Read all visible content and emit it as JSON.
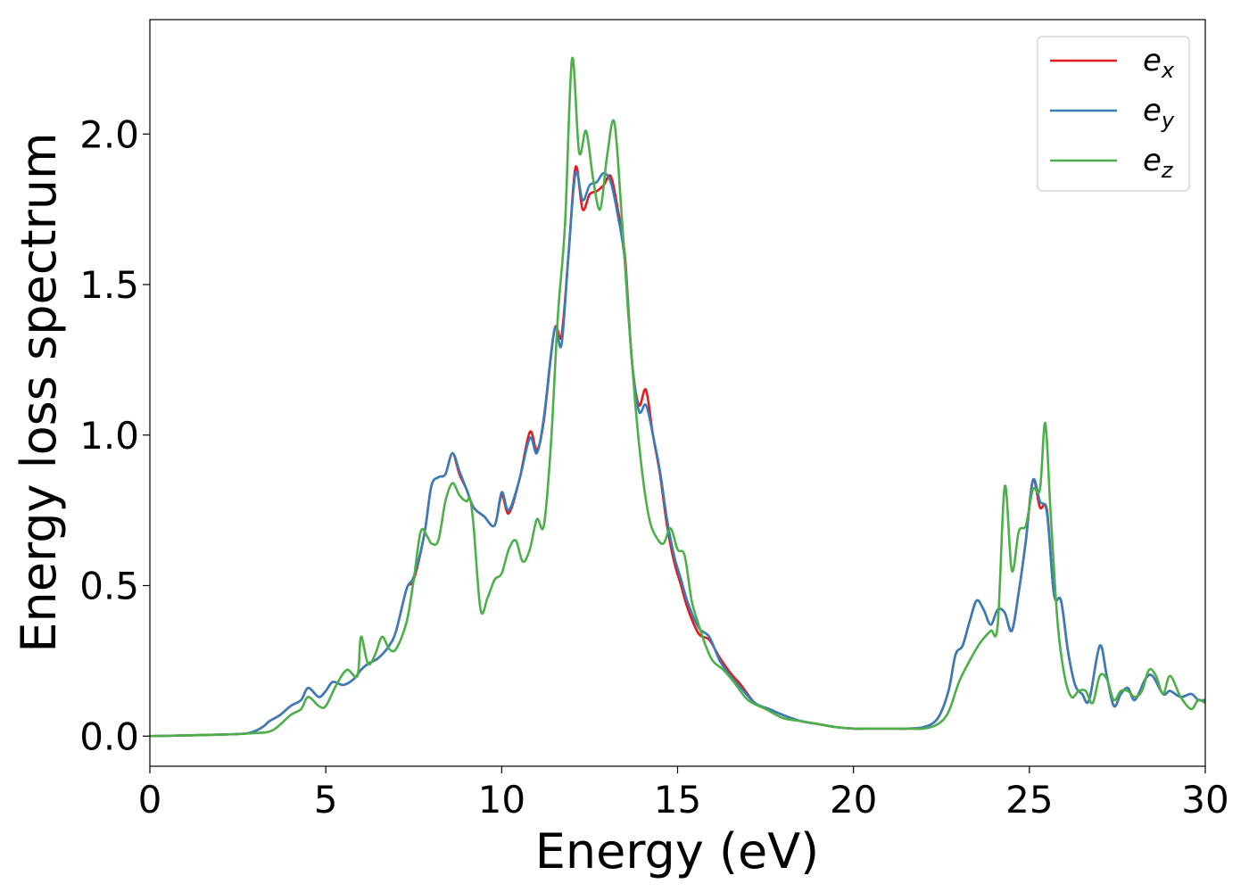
{
  "chart_data": {
    "type": "line",
    "xlabel": "Energy (eV)",
    "ylabel": "Energy loss spectrum",
    "xlim": [
      0,
      30
    ],
    "ylim": [
      -0.1,
      2.38
    ],
    "xticks": [
      0,
      5,
      10,
      15,
      20,
      25,
      30
    ],
    "xtick_labels": [
      "0",
      "5",
      "10",
      "15",
      "20",
      "25",
      "30"
    ],
    "yticks": [
      0.0,
      0.5,
      1.0,
      1.5,
      2.0
    ],
    "ytick_labels": [
      "0.0",
      "0.5",
      "1.0",
      "1.5",
      "2.0"
    ],
    "grid": false,
    "legend_position": "top-right",
    "series": [
      {
        "name": "e",
        "subscript": "x",
        "color": "#e41a1c",
        "x": [
          0,
          2,
          2.8,
          3.2,
          3.4,
          3.7,
          4.0,
          4.3,
          4.5,
          4.8,
          5.0,
          5.2,
          5.5,
          5.8,
          6.0,
          6.2,
          6.5,
          6.8,
          7.0,
          7.3,
          7.5,
          7.8,
          8.0,
          8.2,
          8.4,
          8.6,
          8.8,
          9.0,
          9.2,
          9.5,
          9.8,
          10.0,
          10.2,
          10.5,
          10.8,
          11.0,
          11.2,
          11.5,
          11.7,
          11.9,
          12.1,
          12.3,
          12.5,
          12.7,
          12.9,
          13.1,
          13.3,
          13.5,
          13.7,
          13.9,
          14.1,
          14.3,
          14.5,
          14.7,
          14.9,
          15.1,
          15.3,
          15.6,
          15.9,
          16.2,
          16.5,
          16.8,
          17.2,
          17.6,
          18.0,
          18.5,
          19.0,
          19.5,
          20.0,
          20.5,
          21.0,
          21.5,
          22.0,
          22.4,
          22.7,
          22.9,
          23.1,
          23.3,
          23.5,
          23.7,
          23.9,
          24.1,
          24.3,
          24.5,
          24.7,
          24.9,
          25.1,
          25.3,
          25.5,
          25.7,
          25.9,
          26.1,
          26.3,
          26.5,
          26.7,
          27.0,
          27.2,
          27.4,
          27.6,
          27.8,
          28.0,
          28.3,
          28.5,
          28.8,
          29.0,
          29.3,
          29.6,
          29.8,
          30.0
        ],
        "y": [
          0.0,
          0.005,
          0.01,
          0.03,
          0.05,
          0.07,
          0.1,
          0.12,
          0.16,
          0.13,
          0.15,
          0.18,
          0.17,
          0.19,
          0.22,
          0.24,
          0.26,
          0.3,
          0.35,
          0.49,
          0.52,
          0.67,
          0.83,
          0.86,
          0.87,
          0.94,
          0.87,
          0.82,
          0.76,
          0.73,
          0.7,
          0.8,
          0.74,
          0.85,
          1.01,
          0.95,
          1.05,
          1.35,
          1.33,
          1.6,
          1.89,
          1.75,
          1.8,
          1.81,
          1.83,
          1.86,
          1.75,
          1.6,
          1.25,
          1.1,
          1.15,
          1.0,
          0.87,
          0.7,
          0.58,
          0.5,
          0.42,
          0.34,
          0.32,
          0.26,
          0.21,
          0.17,
          0.11,
          0.09,
          0.07,
          0.05,
          0.04,
          0.03,
          0.025,
          0.025,
          0.025,
          0.025,
          0.03,
          0.06,
          0.15,
          0.27,
          0.3,
          0.38,
          0.45,
          0.42,
          0.37,
          0.42,
          0.41,
          0.35,
          0.48,
          0.65,
          0.85,
          0.76,
          0.75,
          0.47,
          0.45,
          0.28,
          0.17,
          0.14,
          0.12,
          0.3,
          0.2,
          0.1,
          0.14,
          0.16,
          0.12,
          0.19,
          0.2,
          0.14,
          0.15,
          0.13,
          0.14,
          0.12,
          0.12
        ]
      },
      {
        "name": "e",
        "subscript": "y",
        "color": "#377eb8",
        "x": [
          0,
          2,
          2.8,
          3.2,
          3.4,
          3.7,
          4.0,
          4.3,
          4.5,
          4.8,
          5.0,
          5.2,
          5.5,
          5.8,
          6.0,
          6.2,
          6.5,
          6.8,
          7.0,
          7.3,
          7.5,
          7.8,
          8.0,
          8.2,
          8.4,
          8.6,
          8.8,
          9.0,
          9.2,
          9.5,
          9.8,
          10.0,
          10.2,
          10.5,
          10.8,
          11.0,
          11.2,
          11.5,
          11.7,
          11.9,
          12.1,
          12.3,
          12.5,
          12.7,
          12.9,
          13.1,
          13.3,
          13.5,
          13.7,
          13.9,
          14.1,
          14.3,
          14.5,
          14.7,
          14.9,
          15.1,
          15.3,
          15.6,
          15.9,
          16.2,
          16.5,
          16.8,
          17.2,
          17.6,
          18.0,
          18.5,
          19.0,
          19.5,
          20.0,
          20.5,
          21.0,
          21.5,
          22.0,
          22.4,
          22.7,
          22.9,
          23.1,
          23.3,
          23.5,
          23.7,
          23.9,
          24.1,
          24.3,
          24.5,
          24.7,
          24.9,
          25.1,
          25.3,
          25.5,
          25.7,
          25.9,
          26.1,
          26.3,
          26.5,
          26.7,
          27.0,
          27.2,
          27.4,
          27.6,
          27.8,
          28.0,
          28.3,
          28.5,
          28.8,
          29.0,
          29.3,
          29.6,
          29.8,
          30.0
        ],
        "y": [
          0.0,
          0.005,
          0.01,
          0.03,
          0.05,
          0.07,
          0.1,
          0.12,
          0.16,
          0.13,
          0.15,
          0.18,
          0.17,
          0.19,
          0.22,
          0.24,
          0.26,
          0.3,
          0.35,
          0.49,
          0.53,
          0.67,
          0.83,
          0.86,
          0.87,
          0.94,
          0.88,
          0.82,
          0.76,
          0.73,
          0.7,
          0.81,
          0.75,
          0.85,
          0.99,
          0.94,
          1.06,
          1.35,
          1.3,
          1.6,
          1.87,
          1.78,
          1.83,
          1.84,
          1.87,
          1.84,
          1.73,
          1.58,
          1.25,
          1.08,
          1.1,
          1.0,
          0.88,
          0.72,
          0.6,
          0.52,
          0.44,
          0.36,
          0.33,
          0.25,
          0.2,
          0.16,
          0.11,
          0.09,
          0.07,
          0.05,
          0.04,
          0.03,
          0.025,
          0.025,
          0.025,
          0.025,
          0.03,
          0.06,
          0.15,
          0.27,
          0.3,
          0.38,
          0.45,
          0.42,
          0.37,
          0.42,
          0.41,
          0.35,
          0.48,
          0.65,
          0.85,
          0.78,
          0.74,
          0.47,
          0.45,
          0.28,
          0.17,
          0.14,
          0.12,
          0.3,
          0.2,
          0.1,
          0.14,
          0.16,
          0.12,
          0.19,
          0.2,
          0.14,
          0.15,
          0.13,
          0.14,
          0.12,
          0.12
        ]
      },
      {
        "name": "e",
        "subscript": "z",
        "color": "#4daf4a",
        "x": [
          0,
          2,
          3.0,
          3.5,
          4.0,
          4.3,
          4.5,
          4.8,
          5.0,
          5.3,
          5.6,
          5.9,
          6.0,
          6.2,
          6.4,
          6.6,
          6.8,
          7.0,
          7.3,
          7.5,
          7.7,
          7.9,
          8.0,
          8.2,
          8.4,
          8.6,
          8.8,
          9.0,
          9.1,
          9.2,
          9.4,
          9.6,
          9.8,
          10.0,
          10.2,
          10.4,
          10.6,
          10.8,
          11.0,
          11.2,
          11.4,
          11.6,
          11.8,
          12.0,
          12.2,
          12.4,
          12.6,
          12.8,
          13.0,
          13.2,
          13.4,
          13.6,
          13.8,
          14.0,
          14.2,
          14.4,
          14.6,
          14.8,
          15.0,
          15.2,
          15.4,
          15.6,
          15.8,
          16.0,
          16.3,
          16.6,
          17.0,
          17.5,
          18.0,
          18.5,
          19.0,
          19.5,
          20.0,
          20.5,
          21.0,
          21.5,
          22.0,
          22.4,
          22.7,
          23.0,
          23.3,
          23.6,
          23.9,
          24.1,
          24.3,
          24.5,
          24.7,
          24.9,
          25.1,
          25.3,
          25.45,
          25.6,
          25.8,
          26.0,
          26.2,
          26.4,
          26.6,
          26.8,
          27.0,
          27.2,
          27.4,
          27.6,
          27.8,
          28.0,
          28.2,
          28.4,
          28.6,
          28.8,
          29.0,
          29.3,
          29.6,
          29.8,
          30.0
        ],
        "y": [
          0.0,
          0.005,
          0.01,
          0.02,
          0.07,
          0.09,
          0.13,
          0.1,
          0.1,
          0.17,
          0.22,
          0.2,
          0.33,
          0.24,
          0.27,
          0.33,
          0.29,
          0.29,
          0.38,
          0.52,
          0.68,
          0.66,
          0.64,
          0.65,
          0.78,
          0.84,
          0.8,
          0.78,
          0.79,
          0.7,
          0.42,
          0.46,
          0.52,
          0.54,
          0.62,
          0.65,
          0.58,
          0.62,
          0.72,
          0.7,
          0.97,
          1.4,
          1.7,
          2.25,
          1.94,
          2.01,
          1.85,
          1.75,
          1.93,
          2.04,
          1.75,
          1.4,
          1.1,
          0.87,
          0.72,
          0.66,
          0.64,
          0.69,
          0.62,
          0.6,
          0.45,
          0.37,
          0.3,
          0.25,
          0.22,
          0.18,
          0.12,
          0.09,
          0.06,
          0.05,
          0.04,
          0.03,
          0.025,
          0.025,
          0.025,
          0.025,
          0.025,
          0.04,
          0.08,
          0.18,
          0.25,
          0.31,
          0.35,
          0.37,
          0.83,
          0.55,
          0.68,
          0.7,
          0.82,
          0.82,
          1.04,
          0.75,
          0.38,
          0.2,
          0.13,
          0.15,
          0.15,
          0.11,
          0.2,
          0.19,
          0.12,
          0.15,
          0.15,
          0.13,
          0.15,
          0.22,
          0.2,
          0.14,
          0.2,
          0.13,
          0.09,
          0.12,
          0.11
        ]
      }
    ]
  }
}
